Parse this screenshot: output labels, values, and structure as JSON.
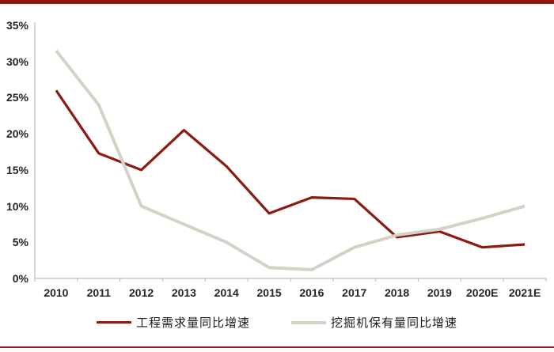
{
  "colors": {
    "accent_red": "#8b1a10",
    "series_gray": "#d4d2c6",
    "axis_line": "#bfbfbf",
    "tick_label": "#262626"
  },
  "chart_data": {
    "type": "line",
    "categories": [
      "2010",
      "2011",
      "2012",
      "2013",
      "2014",
      "2015",
      "2016",
      "2017",
      "2018",
      "2019",
      "2020E",
      "2021E"
    ],
    "series": [
      {
        "name": "工程需求量同比增速",
        "color": "#8b1a10",
        "values": [
          26,
          17.3,
          15,
          20.5,
          15.5,
          9,
          11.2,
          11,
          5.7,
          6.5,
          4.3,
          4.7
        ]
      },
      {
        "name": "挖掘机保有量同比增速",
        "color": "#d4d2c6",
        "values": [
          31.5,
          24,
          10,
          7.5,
          5,
          1.5,
          1.2,
          4.3,
          6,
          6.8,
          8.3,
          10
        ]
      }
    ],
    "title": "",
    "xlabel": "",
    "ylabel": "",
    "ylim": [
      0,
      35
    ],
    "ytick_step": 5,
    "ytick_labels": [
      "0%",
      "5%",
      "10%",
      "15%",
      "20%",
      "25%",
      "30%",
      "35%"
    ],
    "grid": false,
    "legend_position": "bottom"
  }
}
